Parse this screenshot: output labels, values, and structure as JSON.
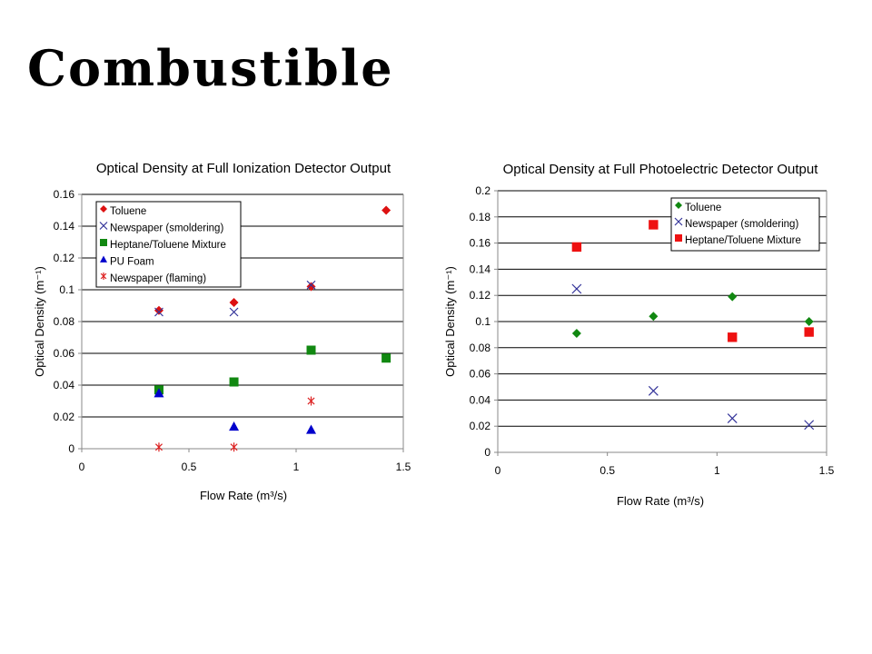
{
  "slide": {
    "title": "Combustible"
  },
  "chart_data": [
    {
      "type": "scatter",
      "title": "Optical Density at Full Ionization Detector Output",
      "xlabel": "Flow Rate (m³/s)",
      "ylabel": "Optical Density (m⁻¹)",
      "xlim": [
        0,
        1.5
      ],
      "ylim": [
        0,
        0.16
      ],
      "x_ticks": [
        "0",
        "0.5",
        "1",
        "1.5"
      ],
      "y_ticks": [
        "0",
        "0.02",
        "0.04",
        "0.06",
        "0.08",
        "0.1",
        "0.12",
        "0.14",
        "0.16"
      ],
      "grid": "horizontal",
      "legend_position": "top-left",
      "series": [
        {
          "name": "Toluene",
          "marker": "diamond",
          "color": "#dd1111",
          "points": [
            [
              0.36,
              0.087
            ],
            [
              0.71,
              0.092
            ],
            [
              1.07,
              0.102
            ],
            [
              1.42,
              0.15
            ]
          ]
        },
        {
          "name": "Newspaper (smoldering)",
          "marker": "x",
          "color": "#333399",
          "points": [
            [
              0.36,
              0.086
            ],
            [
              0.71,
              0.086
            ],
            [
              1.07,
              0.103
            ]
          ]
        },
        {
          "name": "Heptane/Toluene Mixture",
          "marker": "square",
          "color": "#118811",
          "points": [
            [
              0.36,
              0.037
            ],
            [
              0.71,
              0.042
            ],
            [
              1.07,
              0.062
            ],
            [
              1.42,
              0.057
            ]
          ]
        },
        {
          "name": "PU Foam",
          "marker": "triangle",
          "color": "#0000cc",
          "points": [
            [
              0.36,
              0.035
            ],
            [
              0.71,
              0.014
            ],
            [
              1.07,
              0.012
            ]
          ]
        },
        {
          "name": "Newspaper (flaming)",
          "marker": "asterisk",
          "color": "#dd2222",
          "points": [
            [
              0.36,
              0.001
            ],
            [
              0.71,
              0.001
            ],
            [
              1.07,
              0.03
            ]
          ]
        }
      ]
    },
    {
      "type": "scatter",
      "title": "Optical Density at Full Photoelectric Detector Output",
      "xlabel": "Flow Rate (m³/s)",
      "ylabel": "Optical Density (m⁻¹)",
      "xlim": [
        0,
        1.5
      ],
      "ylim": [
        0,
        0.2
      ],
      "x_ticks": [
        "0",
        "0.5",
        "1",
        "1.5"
      ],
      "y_ticks": [
        "0",
        "0.02",
        "0.04",
        "0.06",
        "0.08",
        "0.1",
        "0.12",
        "0.14",
        "0.16",
        "0.18",
        "0.2"
      ],
      "grid": "horizontal",
      "legend_position": "top-right",
      "series": [
        {
          "name": "Toluene",
          "marker": "diamond",
          "color": "#118811",
          "points": [
            [
              0.36,
              0.091
            ],
            [
              0.71,
              0.104
            ],
            [
              1.07,
              0.119
            ],
            [
              1.42,
              0.1
            ]
          ]
        },
        {
          "name": "Newspaper (smoldering)",
          "marker": "x",
          "color": "#333399",
          "points": [
            [
              0.36,
              0.125
            ],
            [
              0.71,
              0.047
            ],
            [
              1.07,
              0.026
            ],
            [
              1.42,
              0.021
            ]
          ]
        },
        {
          "name": "Heptane/Toluene Mixture",
          "marker": "square",
          "color": "#ee1111",
          "points": [
            [
              0.36,
              0.157
            ],
            [
              0.71,
              0.174
            ],
            [
              1.07,
              0.088
            ],
            [
              1.42,
              0.092
            ]
          ]
        }
      ]
    }
  ]
}
